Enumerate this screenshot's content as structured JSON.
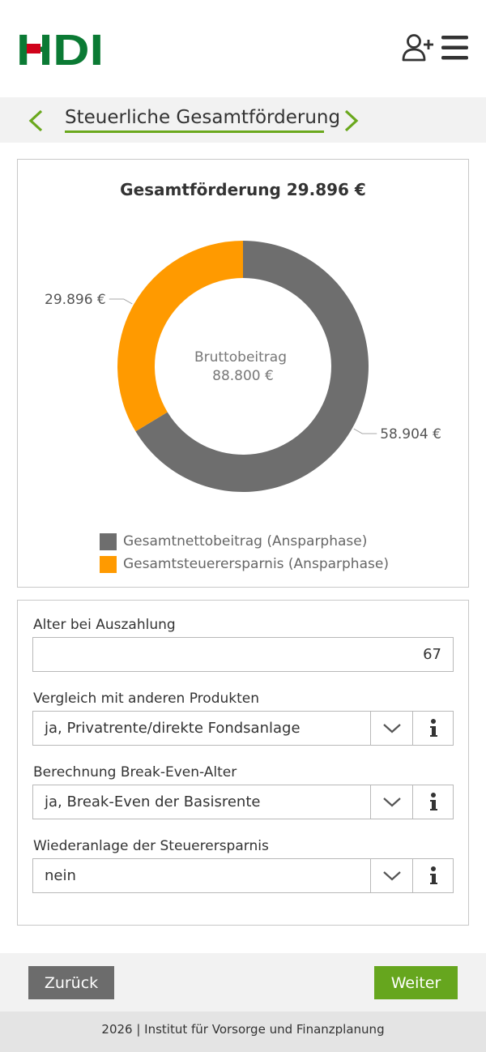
{
  "brand": {
    "logo_text": "HDI",
    "green": "#0b7a34",
    "red": "#d0021b"
  },
  "header": {
    "add_user_icon": "user-plus-icon",
    "menu_icon": "hamburger-menu-icon"
  },
  "titlebar": {
    "title": "Steuerliche Gesamtförderung",
    "prev_icon": "chevron-left-icon",
    "next_icon": "chevron-right-icon",
    "accent": "#6aa81d"
  },
  "chart_data": {
    "type": "pie",
    "title": "Gesamtförderung 29.896 €",
    "center_label": "Bruttobeitrag",
    "center_value": "88.800 €",
    "categories": [
      "Gesamtnettobeitrag (Ansparphase)",
      "Gesamtsteuerersparnis (Ansparphase)"
    ],
    "values": [
      58904,
      29896
    ],
    "value_labels": [
      "58.904 €",
      "29.896 €"
    ],
    "colors": [
      "#6e6e6e",
      "#ff9a00"
    ],
    "legend_position": "bottom"
  },
  "form": {
    "age_label": "Alter bei Auszahlung",
    "age_value": "67",
    "compare_label": "Vergleich mit anderen Produkten",
    "compare_value": "ja, Privatrente/direkte Fondsanlage",
    "breakeven_label": "Berechnung Break-Even-Alter",
    "breakeven_value": "ja, Break-Even der Basisrente",
    "reinvest_label": "Wiederanlage der Steuerersparnis",
    "reinvest_value": "nein"
  },
  "buttons": {
    "back": "Zurück",
    "next": "Weiter"
  },
  "footer": {
    "copyright": "2026 | Institut für Vorsorge und Finanzplanung"
  }
}
